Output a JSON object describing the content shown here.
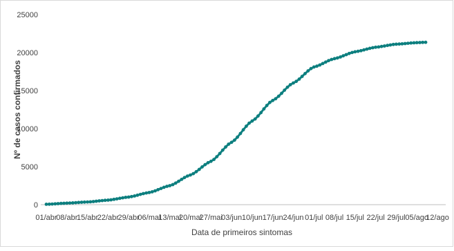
{
  "chart_data": {
    "type": "line",
    "xlabel": "Data de primeiros sintomas",
    "ylabel": "Nº de casos confirmados",
    "ylim": [
      0,
      25000
    ],
    "yticks": [
      0,
      5000,
      10000,
      15000,
      20000,
      25000
    ],
    "xticks": [
      "01/abr",
      "08/abr",
      "15/abr",
      "22/abr",
      "29/abr",
      "06/mai",
      "13/mai",
      "20/mai",
      "27/mai",
      "03/jun",
      "10/jun",
      "17/jun",
      "24/jun",
      "01/jul",
      "08/jul",
      "15/jul",
      "22/jul",
      "29/jul",
      "05/ago",
      "12/ago"
    ],
    "grid": false,
    "legend": "none",
    "series": [
      {
        "color": "#0d7f7f",
        "marker": "circle",
        "points": [
          [
            "01/abr",
            50
          ],
          [
            "08/abr",
            200
          ],
          [
            "15/abr",
            350
          ],
          [
            "22/abr",
            600
          ],
          [
            "29/abr",
            1000
          ],
          [
            "06/mai",
            1600
          ],
          [
            "13/mai",
            2500
          ],
          [
            "20/mai",
            3900
          ],
          [
            "27/mai",
            5700
          ],
          [
            "03/jun",
            8200
          ],
          [
            "10/jun",
            11000
          ],
          [
            "17/jun",
            13700
          ],
          [
            "24/jun",
            16000
          ],
          [
            "01/jul",
            18100
          ],
          [
            "08/jul",
            19200
          ],
          [
            "15/jul",
            20100
          ],
          [
            "22/jul",
            20700
          ],
          [
            "29/jul",
            21100
          ],
          [
            "05/ago",
            21300
          ],
          [
            "08/ago",
            21350
          ]
        ]
      }
    ]
  }
}
